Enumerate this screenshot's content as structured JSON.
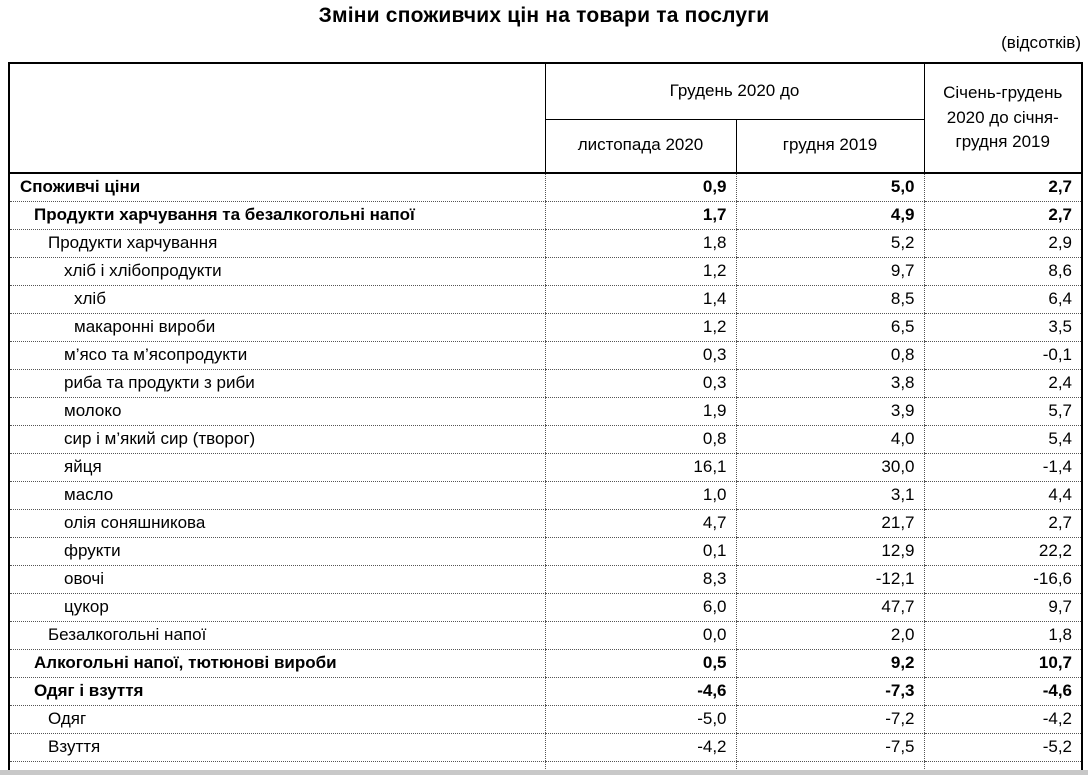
{
  "title": "Зміни споживчих цін на товари та послуги",
  "unit_note": "(відсотків)",
  "table": {
    "header": {
      "group_col": "Грудень 2020 до",
      "sub_col_1": "листопада 2020",
      "sub_col_2": "грудня 2019",
      "last_col": "Січень-грудень 2020 до січня-грудня 2019"
    },
    "rows": [
      {
        "label": "Споживчі ціни",
        "indent": 0,
        "bold": true,
        "values": [
          "0,9",
          "5,0",
          "2,7"
        ]
      },
      {
        "label": "Продукти харчування та безалкогольні напої",
        "indent": 1,
        "bold": true,
        "values": [
          "1,7",
          "4,9",
          "2,7"
        ]
      },
      {
        "label": "Продукти харчування",
        "indent": 2,
        "bold": false,
        "values": [
          "1,8",
          "5,2",
          "2,9"
        ]
      },
      {
        "label": "хліб і хлібопродукти",
        "indent": 3,
        "bold": false,
        "values": [
          "1,2",
          "9,7",
          "8,6"
        ]
      },
      {
        "label": "хліб",
        "indent": 4,
        "bold": false,
        "values": [
          "1,4",
          "8,5",
          "6,4"
        ]
      },
      {
        "label": "макаронні вироби",
        "indent": 4,
        "bold": false,
        "values": [
          "1,2",
          "6,5",
          "3,5"
        ]
      },
      {
        "label": "м’ясо та м’ясопродукти",
        "indent": 3,
        "bold": false,
        "values": [
          "0,3",
          "0,8",
          "-0,1"
        ]
      },
      {
        "label": "риба та продукти з риби",
        "indent": 3,
        "bold": false,
        "values": [
          "0,3",
          "3,8",
          "2,4"
        ]
      },
      {
        "label": "молоко",
        "indent": 3,
        "bold": false,
        "values": [
          "1,9",
          "3,9",
          "5,7"
        ]
      },
      {
        "label": "сир і м’який сир (творог)",
        "indent": 3,
        "bold": false,
        "values": [
          "0,8",
          "4,0",
          "5,4"
        ]
      },
      {
        "label": "яйця",
        "indent": 3,
        "bold": false,
        "values": [
          "16,1",
          "30,0",
          "-1,4"
        ]
      },
      {
        "label": "масло",
        "indent": 3,
        "bold": false,
        "values": [
          "1,0",
          "3,1",
          "4,4"
        ]
      },
      {
        "label": "олія соняшникова",
        "indent": 3,
        "bold": false,
        "values": [
          "4,7",
          "21,7",
          "2,7"
        ]
      },
      {
        "label": "фрукти",
        "indent": 3,
        "bold": false,
        "values": [
          "0,1",
          "12,9",
          "22,2"
        ]
      },
      {
        "label": "овочі",
        "indent": 3,
        "bold": false,
        "values": [
          "8,3",
          "-12,1",
          "-16,6"
        ]
      },
      {
        "label": "цукор",
        "indent": 3,
        "bold": false,
        "values": [
          "6,0",
          "47,7",
          "9,7"
        ]
      },
      {
        "label": "Безалкогольні напої",
        "indent": 2,
        "bold": false,
        "values": [
          "0,0",
          "2,0",
          "1,8"
        ]
      },
      {
        "label": "Алкогольні напої, тютюнові вироби",
        "indent": 1,
        "bold": true,
        "values": [
          "0,5",
          "9,2",
          "10,7"
        ]
      },
      {
        "label": "Одяг і взуття",
        "indent": 1,
        "bold": true,
        "values": [
          "-4,6",
          "-7,3",
          "-4,6"
        ]
      },
      {
        "label": "Одяг",
        "indent": 2,
        "bold": false,
        "values": [
          "-5,0",
          "-7,2",
          "-4,2"
        ]
      },
      {
        "label": "Взуття",
        "indent": 2,
        "bold": false,
        "values": [
          "-4,2",
          "-7,5",
          "-5,2"
        ]
      }
    ]
  }
}
